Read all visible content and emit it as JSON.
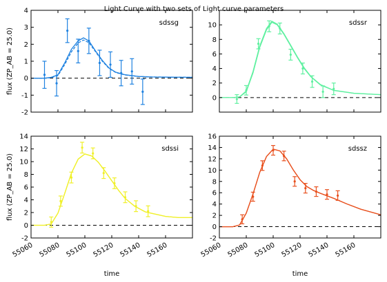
{
  "title": "Light Curve with two sets of Light curve parameters",
  "chart_data": [
    {
      "type": "scatter",
      "label": "sdssg",
      "color": "#1f82e0",
      "xlim": [
        55060,
        55180
      ],
      "ylim": [
        -2,
        4
      ],
      "yticks": [
        -2,
        -1,
        0,
        1,
        2,
        3,
        4
      ],
      "ylabel": "flux (ZP_AB = 25.0)",
      "points": [
        {
          "x": 55070,
          "y": 0.2,
          "err": 0.8
        },
        {
          "x": 55079,
          "y": -0.3,
          "err": 0.75
        },
        {
          "x": 55087,
          "y": 2.8,
          "err": 0.7
        },
        {
          "x": 55095,
          "y": 1.6,
          "err": 0.7
        },
        {
          "x": 55103,
          "y": 2.2,
          "err": 0.75
        },
        {
          "x": 55111,
          "y": 0.9,
          "err": 0.75
        },
        {
          "x": 55119,
          "y": 0.8,
          "err": 0.75
        },
        {
          "x": 55127,
          "y": 0.3,
          "err": 0.75
        },
        {
          "x": 55135,
          "y": 0.4,
          "err": 0.75
        },
        {
          "x": 55143,
          "y": -0.8,
          "err": 0.75
        }
      ],
      "model_a": [
        [
          55060,
          0
        ],
        [
          55070,
          0
        ],
        [
          55075,
          0.05
        ],
        [
          55080,
          0.2
        ],
        [
          55085,
          0.9
        ],
        [
          55090,
          1.7
        ],
        [
          55095,
          2.2
        ],
        [
          55099,
          2.38
        ],
        [
          55103,
          2.2
        ],
        [
          55108,
          1.6
        ],
        [
          55113,
          1.05
        ],
        [
          55118,
          0.6
        ],
        [
          55123,
          0.35
        ],
        [
          55130,
          0.2
        ],
        [
          55140,
          0.1
        ],
        [
          55150,
          0.07
        ],
        [
          55165,
          0.06
        ],
        [
          55180,
          0.05
        ]
      ],
      "model_b": [
        [
          55060,
          0
        ],
        [
          55070,
          0
        ],
        [
          55075,
          0.03
        ],
        [
          55080,
          0.15
        ],
        [
          55085,
          0.8
        ],
        [
          55090,
          1.55
        ],
        [
          55095,
          2.08
        ],
        [
          55099,
          2.25
        ],
        [
          55103,
          2.1
        ],
        [
          55108,
          1.55
        ],
        [
          55113,
          1.0
        ],
        [
          55118,
          0.57
        ],
        [
          55123,
          0.33
        ],
        [
          55130,
          0.19
        ],
        [
          55140,
          0.1
        ],
        [
          55150,
          0.07
        ],
        [
          55165,
          0.06
        ],
        [
          55180,
          0.05
        ]
      ]
    },
    {
      "type": "scatter",
      "label": "sdssr",
      "color": "#5ff0a0",
      "xlim": [
        55060,
        55180
      ],
      "ylim": [
        -2,
        12
      ],
      "yticks": [
        0,
        2,
        4,
        6,
        8,
        10
      ],
      "ylabel": "",
      "points": [
        {
          "x": 55073,
          "y": -0.2,
          "err": 0.6
        },
        {
          "x": 55080,
          "y": 1.0,
          "err": 0.65
        },
        {
          "x": 55089,
          "y": 7.4,
          "err": 0.7
        },
        {
          "x": 55097,
          "y": 9.8,
          "err": 0.75
        },
        {
          "x": 55105,
          "y": 9.5,
          "err": 0.75
        },
        {
          "x": 55113,
          "y": 5.9,
          "err": 0.75
        },
        {
          "x": 55122,
          "y": 4.0,
          "err": 0.75
        },
        {
          "x": 55129,
          "y": 2.2,
          "err": 0.8
        },
        {
          "x": 55137,
          "y": 0.8,
          "err": 0.8
        },
        {
          "x": 55145,
          "y": 1.2,
          "err": 0.8
        }
      ],
      "model_a": [
        [
          55060,
          0
        ],
        [
          55070,
          0
        ],
        [
          55075,
          0.1
        ],
        [
          55080,
          0.9
        ],
        [
          55085,
          3.6
        ],
        [
          55090,
          7.1
        ],
        [
          55095,
          9.5
        ],
        [
          55099,
          10.5
        ],
        [
          55103,
          10.1
        ],
        [
          55108,
          8.8
        ],
        [
          55113,
          7.2
        ],
        [
          55118,
          5.6
        ],
        [
          55123,
          4.1
        ],
        [
          55128,
          2.9
        ],
        [
          55135,
          1.8
        ],
        [
          55145,
          1.0
        ],
        [
          55160,
          0.6
        ],
        [
          55180,
          0.4
        ]
      ],
      "model_b": [
        [
          55060,
          0
        ],
        [
          55070,
          0
        ],
        [
          55075,
          0.08
        ],
        [
          55080,
          0.8
        ],
        [
          55085,
          3.4
        ],
        [
          55090,
          6.9
        ],
        [
          55095,
          9.3
        ],
        [
          55099,
          10.35
        ],
        [
          55103,
          10.0
        ],
        [
          55108,
          8.7
        ],
        [
          55113,
          7.1
        ],
        [
          55118,
          5.5
        ],
        [
          55123,
          4.0
        ],
        [
          55128,
          2.85
        ],
        [
          55135,
          1.75
        ],
        [
          55145,
          0.98
        ],
        [
          55160,
          0.58
        ],
        [
          55180,
          0.4
        ]
      ]
    },
    {
      "type": "scatter",
      "label": "sdssi",
      "color": "#f0f02a",
      "xlim": [
        55060,
        55180
      ],
      "ylim": [
        -2,
        14
      ],
      "yticks": [
        -2,
        0,
        2,
        4,
        6,
        8,
        10,
        12,
        14
      ],
      "ylabel": "flux (ZP_AB = 25.0)",
      "points": [
        {
          "x": 55075,
          "y": 0.5,
          "err": 0.8
        },
        {
          "x": 55082,
          "y": 3.8,
          "err": 0.8
        },
        {
          "x": 55090,
          "y": 7.5,
          "err": 0.85
        },
        {
          "x": 55098,
          "y": 12.2,
          "err": 0.85
        },
        {
          "x": 55106,
          "y": 11.3,
          "err": 0.85
        },
        {
          "x": 55114,
          "y": 8.2,
          "err": 0.85
        },
        {
          "x": 55122,
          "y": 6.6,
          "err": 0.85
        },
        {
          "x": 55130,
          "y": 4.4,
          "err": 0.85
        },
        {
          "x": 55138,
          "y": 3.0,
          "err": 0.85
        },
        {
          "x": 55147,
          "y": 2.2,
          "err": 0.85
        }
      ],
      "model_a": [
        [
          55060,
          0
        ],
        [
          55070,
          0
        ],
        [
          55075,
          0.2
        ],
        [
          55080,
          1.9
        ],
        [
          55085,
          5.0
        ],
        [
          55090,
          8.2
        ],
        [
          55095,
          10.4
        ],
        [
          55100,
          11.2
        ],
        [
          55105,
          10.9
        ],
        [
          55110,
          9.9
        ],
        [
          55115,
          8.5
        ],
        [
          55120,
          7.0
        ],
        [
          55125,
          5.5
        ],
        [
          55130,
          4.2
        ],
        [
          55137,
          3.0
        ],
        [
          55145,
          2.1
        ],
        [
          55160,
          1.4
        ],
        [
          55170,
          1.2
        ],
        [
          55180,
          1.2
        ]
      ],
      "model_b": [
        [
          55060,
          0
        ],
        [
          55070,
          0
        ],
        [
          55075,
          0.2
        ],
        [
          55080,
          1.9
        ],
        [
          55085,
          5.0
        ],
        [
          55090,
          8.2
        ],
        [
          55095,
          10.4
        ],
        [
          55100,
          11.2
        ],
        [
          55105,
          10.9
        ],
        [
          55110,
          9.9
        ],
        [
          55115,
          8.5
        ],
        [
          55120,
          7.0
        ],
        [
          55125,
          5.5
        ],
        [
          55130,
          4.2
        ],
        [
          55137,
          3.0
        ],
        [
          55145,
          2.1
        ],
        [
          55160,
          1.4
        ],
        [
          55170,
          1.2
        ],
        [
          55180,
          1.2
        ]
      ]
    },
    {
      "type": "scatter",
      "label": "sdssz",
      "color": "#e8501e",
      "xlim": [
        55060,
        55180
      ],
      "ylim": [
        -2,
        16
      ],
      "yticks": [
        -2,
        0,
        2,
        4,
        6,
        8,
        10,
        12,
        14,
        16
      ],
      "ylabel": "",
      "points": [
        {
          "x": 55077,
          "y": 1.3,
          "err": 0.8
        },
        {
          "x": 55085,
          "y": 5.3,
          "err": 0.8
        },
        {
          "x": 55092,
          "y": 10.8,
          "err": 0.85
        },
        {
          "x": 55100,
          "y": 13.5,
          "err": 0.85
        },
        {
          "x": 55108,
          "y": 12.5,
          "err": 0.85
        },
        {
          "x": 55116,
          "y": 8.0,
          "err": 0.85
        },
        {
          "x": 55124,
          "y": 6.8,
          "err": 0.85
        },
        {
          "x": 55132,
          "y": 6.2,
          "err": 0.85
        },
        {
          "x": 55140,
          "y": 5.7,
          "err": 0.85
        },
        {
          "x": 55148,
          "y": 5.5,
          "err": 0.85
        }
      ],
      "model_a": [
        [
          55060,
          0
        ],
        [
          55070,
          0
        ],
        [
          55075,
          0.3
        ],
        [
          55080,
          2.4
        ],
        [
          55085,
          5.8
        ],
        [
          55090,
          9.6
        ],
        [
          55095,
          12.4
        ],
        [
          55100,
          13.7
        ],
        [
          55105,
          13.4
        ],
        [
          55110,
          12.0
        ],
        [
          55115,
          10.0
        ],
        [
          55120,
          8.3
        ],
        [
          55125,
          7.1
        ],
        [
          55130,
          6.4
        ],
        [
          55135,
          5.9
        ],
        [
          55145,
          5.0
        ],
        [
          55155,
          4.0
        ],
        [
          55165,
          3.1
        ],
        [
          55180,
          2.1
        ]
      ],
      "model_b": [
        [
          55060,
          0
        ],
        [
          55070,
          0
        ],
        [
          55075,
          0.3
        ],
        [
          55080,
          2.4
        ],
        [
          55085,
          5.8
        ],
        [
          55090,
          9.6
        ],
        [
          55095,
          12.4
        ],
        [
          55100,
          13.7
        ],
        [
          55105,
          13.4
        ],
        [
          55110,
          12.0
        ],
        [
          55115,
          10.0
        ],
        [
          55120,
          8.3
        ],
        [
          55125,
          7.1
        ],
        [
          55130,
          6.4
        ],
        [
          55135,
          5.9
        ],
        [
          55145,
          5.0
        ],
        [
          55155,
          4.0
        ],
        [
          55165,
          3.1
        ],
        [
          55180,
          2.1
        ]
      ]
    }
  ],
  "xticks": [
    55060,
    55080,
    55100,
    55120,
    55140,
    55160
  ],
  "xlabel": "time"
}
